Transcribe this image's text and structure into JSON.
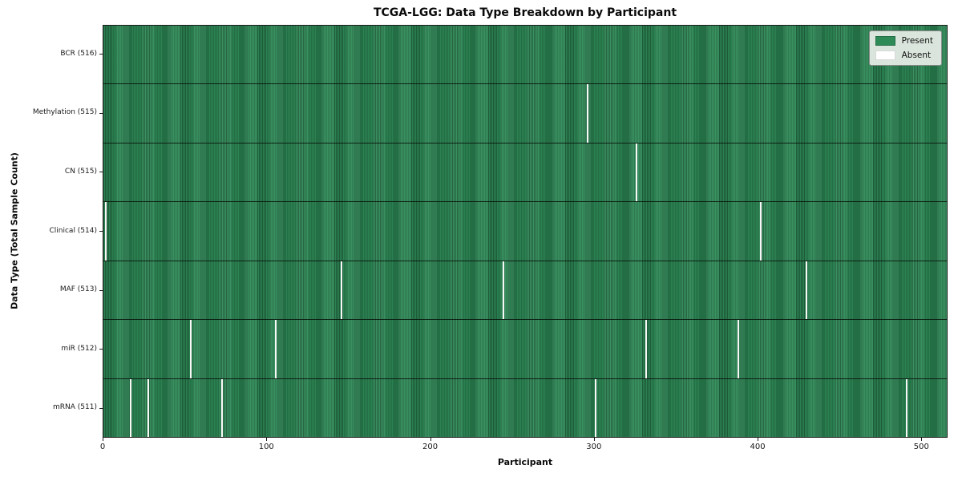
{
  "chart_data": {
    "type": "heatmap",
    "title": "TCGA-LGG: Data Type Breakdown by Participant",
    "xlabel": "Participant",
    "ylabel": "Data Type (Total Sample Count)",
    "x_ticks": [
      0,
      100,
      200,
      300,
      400,
      500
    ],
    "x_range": [
      0,
      516
    ],
    "total_participants": 516,
    "grid": false,
    "legend_position": "upper right",
    "legend": [
      {
        "label": "Present",
        "color": "#2e8b57"
      },
      {
        "label": "Absent",
        "color": "#ffffff"
      }
    ],
    "colors": {
      "present": "#2e8b57",
      "present_stripe_dark": "#1e5c3a",
      "absent": "#f8f8f6",
      "row_separator": "#14281a"
    },
    "rows": [
      {
        "label": "BCR (516)",
        "present_count": 516,
        "absent_participants": []
      },
      {
        "label": "Methylation (515)",
        "present_count": 515,
        "absent_participants": [
          295
        ]
      },
      {
        "label": "CN (515)",
        "present_count": 515,
        "absent_participants": [
          325
        ]
      },
      {
        "label": "Clinical (514)",
        "present_count": 514,
        "absent_participants": [
          1,
          401
        ]
      },
      {
        "label": "MAF (513)",
        "present_count": 513,
        "absent_participants": [
          145,
          244,
          429
        ]
      },
      {
        "label": "miR (512)",
        "present_count": 512,
        "absent_participants": [
          53,
          105,
          331,
          387
        ]
      },
      {
        "label": "mRNA (511)",
        "present_count": 511,
        "absent_participants": [
          16,
          27,
          72,
          300,
          490
        ]
      }
    ]
  }
}
